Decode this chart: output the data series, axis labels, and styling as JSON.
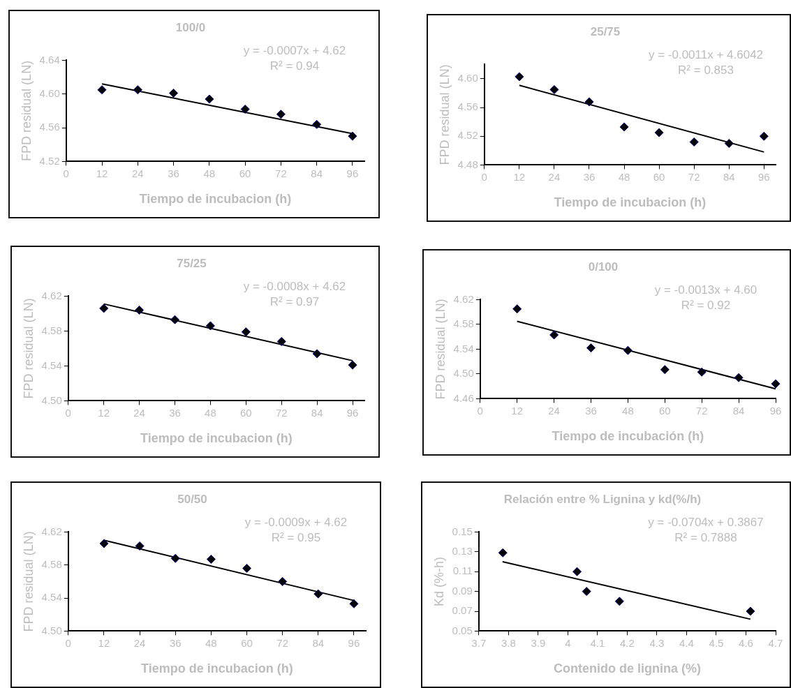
{
  "chart_data": [
    {
      "type": "scatter",
      "title": "100/0",
      "xlabel": "Tiempo de incubacion (h)",
      "ylabel": "FPD residual (LN)",
      "x": [
        12,
        24,
        36,
        48,
        60,
        72,
        84,
        96
      ],
      "xlim": [
        0,
        100
      ],
      "xticks": [
        0,
        12,
        24,
        36,
        48,
        60,
        72,
        84,
        96
      ],
      "ylim": [
        4.52,
        4.64
      ],
      "yticks": [
        {
          "value": 4.52,
          "label": "4.52"
        },
        {
          "value": 4.56,
          "label": "4.56"
        },
        {
          "value": 4.6,
          "label": "4.60"
        },
        {
          "value": 4.64,
          "label": "4.64"
        }
      ],
      "grid": false,
      "legend": false,
      "marker": "diamond",
      "annotations": [
        "y = -0.0007x + 4.62",
        "R² = 0.94"
      ],
      "series": [
        {
          "type": "scatter",
          "color": "#000000",
          "values": [
            4.605,
            4.605,
            4.601,
            4.594,
            4.582,
            4.576,
            4.564,
            4.55
          ]
        },
        {
          "type": "line",
          "color": "#000000",
          "x": [
            12,
            96
          ],
          "values": [
            4.612,
            4.553
          ],
          "marker": "none",
          "line_style": "solid"
        }
      ]
    },
    {
      "type": "scatter",
      "title": "25/75",
      "xlabel": "Tiempo de incubacion (h)",
      "ylabel": "FPD residual (LN)",
      "x": [
        12,
        24,
        36,
        48,
        60,
        72,
        84,
        96
      ],
      "xlim": [
        0,
        100
      ],
      "xticks": [
        0,
        12,
        24,
        36,
        48,
        60,
        72,
        84,
        96
      ],
      "ylim": [
        4.48,
        4.62
      ],
      "yticks": [
        {
          "value": 4.48,
          "label": "4.48"
        },
        {
          "value": 4.52,
          "label": "4.52"
        },
        {
          "value": 4.56,
          "label": "4.56"
        },
        {
          "value": 4.6,
          "label": "4.60"
        }
      ],
      "grid": false,
      "legend": false,
      "marker": "diamond",
      "annotations": [
        "y = -0.0011x + 4.6042",
        "R² = 0.853"
      ],
      "series": [
        {
          "type": "scatter",
          "color": "#000000",
          "values": [
            4.603,
            4.585,
            4.568,
            4.533,
            4.525,
            4.512,
            4.51,
            4.52
          ]
        },
        {
          "type": "line",
          "color": "#000000",
          "x": [
            12,
            96
          ],
          "values": [
            4.591,
            4.498
          ],
          "marker": "none",
          "line_style": "solid"
        }
      ]
    },
    {
      "type": "scatter",
      "title": "75/25",
      "xlabel": "Tiempo de incubacion (h)",
      "ylabel": "FPD residual (LN)",
      "x": [
        12,
        24,
        36,
        48,
        60,
        72,
        84,
        96
      ],
      "xlim": [
        0,
        100
      ],
      "xticks": [
        0,
        12,
        24,
        36,
        48,
        60,
        72,
        84,
        96
      ],
      "ylim": [
        4.5,
        4.62
      ],
      "yticks": [
        {
          "value": 4.5,
          "label": "4.50"
        },
        {
          "value": 4.54,
          "label": "4.54"
        },
        {
          "value": 4.58,
          "label": "4.58"
        },
        {
          "value": 4.62,
          "label": "4.62"
        }
      ],
      "grid": false,
      "legend": false,
      "marker": "diamond",
      "annotations": [
        "y = -0.0008x + 4.62",
        "R² = 0.97"
      ],
      "series": [
        {
          "type": "scatter",
          "color": "#000000",
          "values": [
            4.606,
            4.604,
            4.593,
            4.586,
            4.579,
            4.568,
            4.554,
            4.541
          ]
        },
        {
          "type": "line",
          "color": "#000000",
          "x": [
            12,
            96
          ],
          "values": [
            4.611,
            4.546
          ],
          "marker": "none",
          "line_style": "solid"
        }
      ]
    },
    {
      "type": "scatter",
      "title": "0/100",
      "xlabel": "Tiempo de incubación (h)",
      "ylabel": "FPD residual (LN)",
      "x": [
        12,
        24,
        36,
        48,
        60,
        72,
        84,
        96
      ],
      "xlim": [
        0,
        96
      ],
      "xticks": [
        0,
        12,
        24,
        36,
        48,
        60,
        72,
        84,
        96
      ],
      "ylim": [
        4.46,
        4.62
      ],
      "yticks": [
        {
          "value": 4.46,
          "label": "4.46"
        },
        {
          "value": 4.5,
          "label": "4.50"
        },
        {
          "value": 4.54,
          "label": "4.54"
        },
        {
          "value": 4.58,
          "label": "4.58"
        },
        {
          "value": 4.62,
          "label": "4.62"
        }
      ],
      "grid": false,
      "legend": false,
      "marker": "diamond",
      "annotations": [
        "y = -0.0013x + 4.60",
        "R² = 0.92"
      ],
      "series": [
        {
          "type": "scatter",
          "color": "#000000",
          "values": [
            4.605,
            4.563,
            4.542,
            4.538,
            4.507,
            4.503,
            4.494,
            4.484
          ]
        },
        {
          "type": "line",
          "color": "#000000",
          "x": [
            12,
            96
          ],
          "values": [
            4.585,
            4.476
          ],
          "marker": "none",
          "line_style": "solid"
        }
      ]
    },
    {
      "type": "scatter",
      "title": "50/50",
      "xlabel": "Tiempo de incubacion (h)",
      "ylabel": "FPD residual (LN)",
      "x": [
        12,
        24,
        36,
        48,
        60,
        72,
        84,
        96
      ],
      "xlim": [
        0,
        100
      ],
      "xticks": [
        0,
        12,
        24,
        36,
        48,
        60,
        72,
        84,
        96
      ],
      "ylim": [
        4.5,
        4.62
      ],
      "yticks": [
        {
          "value": 4.5,
          "label": "4.50"
        },
        {
          "value": 4.54,
          "label": "4.54"
        },
        {
          "value": 4.58,
          "label": "4.58"
        },
        {
          "value": 4.62,
          "label": "4.62"
        }
      ],
      "grid": false,
      "legend": false,
      "marker": "diamond",
      "annotations": [
        "y = -0.0009x + 4.62",
        "R² = 0.95"
      ],
      "series": [
        {
          "type": "scatter",
          "color": "#000000",
          "values": [
            4.606,
            4.603,
            4.588,
            4.587,
            4.576,
            4.56,
            4.545,
            4.533
          ]
        },
        {
          "type": "line",
          "color": "#000000",
          "x": [
            12,
            96
          ],
          "values": [
            4.61,
            4.537
          ],
          "marker": "none",
          "line_style": "solid"
        }
      ]
    },
    {
      "type": "scatter",
      "title": "Relación entre % Lignina y kd(%/h)",
      "xlabel": "Contenido de lignina (%)",
      "ylabel": "Kd (%-h)",
      "x": [
        3.781,
        4.031,
        4.063,
        4.174,
        4.615
      ],
      "xlim": [
        3.7,
        4.7
      ],
      "xticks": [
        3.7,
        3.8,
        3.9,
        4,
        4.1,
        4.2,
        4.3,
        4.4,
        4.5,
        4.6,
        4.7
      ],
      "ylim": [
        0.05,
        0.15
      ],
      "yticks": [
        0.05,
        0.07,
        0.09,
        0.11,
        0.13,
        0.15
      ],
      "grid": false,
      "legend": false,
      "marker": "diamond",
      "annotations": [
        "y = -0.0704x + 0.3867",
        "R² = 0.7888"
      ],
      "series": [
        {
          "type": "scatter",
          "color": "#000000",
          "values": [
            0.129,
            0.11,
            0.09,
            0.08,
            0.07
          ]
        },
        {
          "type": "line",
          "color": "#000000",
          "x": [
            3.78,
            4.615
          ],
          "values": [
            0.12,
            0.062
          ],
          "marker": "none",
          "line_style": "solid"
        }
      ]
    }
  ]
}
